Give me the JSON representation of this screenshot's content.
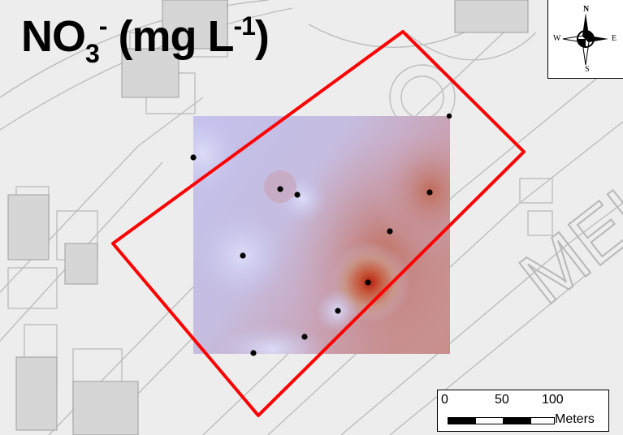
{
  "title": {
    "main": "NO",
    "sub": "3",
    "sup": "-",
    "unit_open": " (mg L",
    "unit_sup": "-1",
    "unit_close": ")"
  },
  "basemap": {
    "street_label": "MEUS"
  },
  "compass": {
    "n": "N",
    "s": "S",
    "e": "E",
    "w": "W"
  },
  "scalebar": {
    "labels": [
      "0",
      "50",
      "100"
    ],
    "units": "Meters"
  },
  "colors": {
    "low": "#c6c6ee",
    "high": "#b83018",
    "boundary": "#ff0000",
    "sample_point": "#000000"
  },
  "sample_points_count": 12
}
